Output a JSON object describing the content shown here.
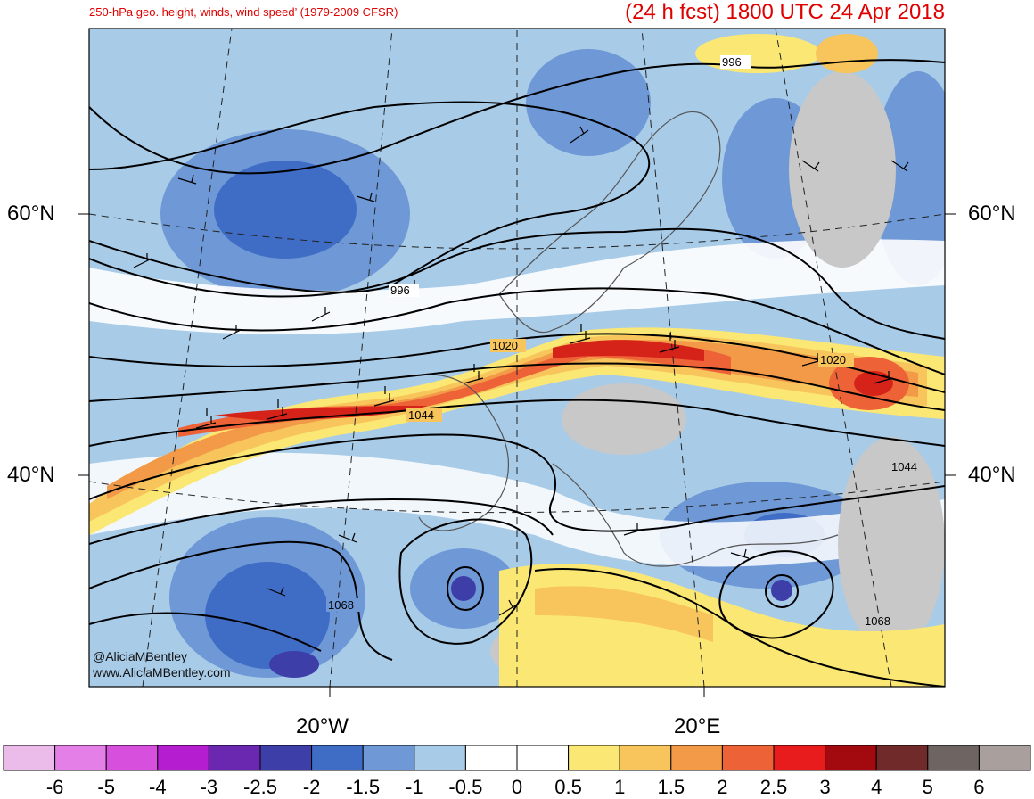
{
  "title": {
    "left": "250-hPa geo. height, winds, wind speed’ (1979-2009 CFSR)",
    "right": "(24 h fcst) 1800 UTC 24 Apr 2018"
  },
  "axes": {
    "lat_left": [
      "60°N",
      "40°N"
    ],
    "lat_right": [
      "60°N",
      "40°N"
    ],
    "lon": [
      "20°W",
      "20°E"
    ]
  },
  "contour_labels": [
    "996",
    "996",
    "1020",
    "1020",
    "1044",
    "1044",
    "1068",
    "1068"
  ],
  "credits": [
    "@AliciaMBentley",
    "www.AliciaMBentley.com"
  ],
  "colorbar": {
    "labels": [
      "-6",
      "-5",
      "-4",
      "-3",
      "-2.5",
      "-2",
      "-1.5",
      "-1",
      "-0.5",
      "0",
      "0.5",
      "1",
      "1.5",
      "2",
      "2.5",
      "3",
      "4",
      "5",
      "6"
    ],
    "colors": [
      "#ebbbe9",
      "#e57fe8",
      "#d64fdd",
      "#b41ed0",
      "#6a28b0",
      "#3e3ea8",
      "#3f6cc5",
      "#6e98d6",
      "#a8cbe8",
      "#ffffff",
      "#ffffff",
      "#fbe773",
      "#f7c55b",
      "#f29a47",
      "#ee6237",
      "#e81c1c",
      "#a20a10",
      "#712a2a",
      "#6e6563",
      "#a99f9d"
    ]
  },
  "colors": {
    "title": "#e00000",
    "jet_core": "#d6231a",
    "land_gray": "#c8c8c8"
  }
}
